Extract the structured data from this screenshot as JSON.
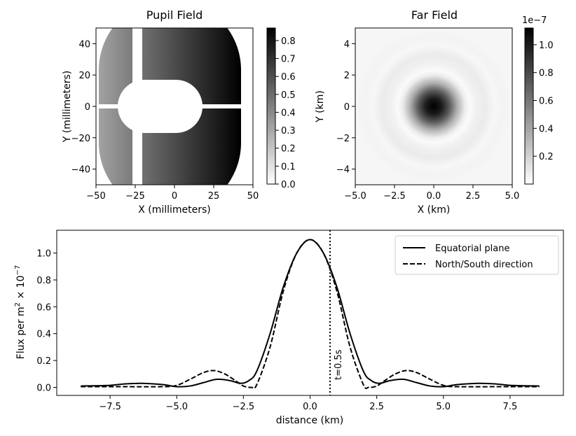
{
  "chart_data": [
    {
      "type": "heatmap",
      "title": "Pupil Field",
      "xlabel": "X (millimeters)",
      "ylabel": "Y (millimeters)",
      "xlim": [
        -50,
        50
      ],
      "ylim": [
        -50,
        50
      ],
      "xticks": [
        -50,
        -25,
        0,
        25,
        50
      ],
      "xtick_labels": [
        "−50",
        "−25",
        "0",
        "25",
        "50"
      ],
      "yticks": [
        -40,
        -20,
        0,
        20,
        40
      ],
      "ytick_labels": [
        "−40",
        "−20",
        "0",
        "20",
        "40"
      ],
      "colorbar": {
        "min": 0,
        "max": 0.87,
        "ticks": [
          0.0,
          0.1,
          0.2,
          0.3,
          0.4,
          0.5,
          0.6,
          0.7,
          0.8
        ],
        "tick_labels": [
          "0.0",
          "0.1",
          "0.2",
          "0.3",
          "0.4",
          "0.5",
          "0.6",
          "0.7",
          "0.8"
        ]
      },
      "aperture": {
        "outer_radius": 45,
        "flat_edges_x": [
          -49,
          42
        ],
        "inner_obstruction": {
          "center_x": 0,
          "center_y": 0,
          "half_width": 17,
          "half_height": 17
        },
        "horizontal_spider": {
          "y": 0,
          "half_thickness": 1.2
        },
        "vertical_spider": {
          "x": -25,
          "half_width": 3
        }
      }
    },
    {
      "type": "heatmap",
      "title": "Far Field",
      "xlabel": "X (km)",
      "ylabel": "Y (km)",
      "xlim": [
        -5,
        5
      ],
      "ylim": [
        -5,
        5
      ],
      "xticks": [
        -5.0,
        -2.5,
        0.0,
        2.5,
        5.0
      ],
      "xtick_labels": [
        "−5.0",
        "−2.5",
        "0.0",
        "2.5",
        "5.0"
      ],
      "yticks": [
        -4,
        -2,
        0,
        2,
        4
      ],
      "ytick_labels": [
        "−4",
        "−2",
        "0",
        "2",
        "4"
      ],
      "colorbar": {
        "min": 0,
        "max": 1.12,
        "ticks": [
          0.2,
          0.4,
          0.6,
          0.8,
          1.0
        ],
        "tick_labels": [
          "0.2",
          "0.4",
          "0.6",
          "0.8",
          "1.0"
        ],
        "offset_text": "1e−7"
      }
    },
    {
      "type": "line",
      "xlabel": "distance (km)",
      "ylabel_main": "Flux per m",
      "ylabel_exp1": "2",
      "ylabel_mid": " × 10",
      "ylabel_exp2": "−7",
      "xlim": [
        -9.5,
        9.5
      ],
      "ylim": [
        -0.06,
        1.17
      ],
      "xticks": [
        -7.5,
        -5.0,
        -2.5,
        0.0,
        2.5,
        5.0,
        7.5
      ],
      "xtick_labels": [
        "−7.5",
        "−5.0",
        "−2.5",
        "0.0",
        "2.5",
        "5.0",
        "7.5"
      ],
      "yticks": [
        0.0,
        0.2,
        0.4,
        0.6,
        0.8,
        1.0
      ],
      "ytick_labels": [
        "0.0",
        "0.2",
        "0.4",
        "0.6",
        "0.8",
        "1.0"
      ],
      "series": [
        {
          "name": "Equatorial plane",
          "style": "solid",
          "x": [
            -8.6,
            -7.5,
            -7.0,
            -6.3,
            -5.5,
            -5.0,
            -4.5,
            -4.0,
            -3.5,
            -3.0,
            -2.6,
            -2.3,
            -2.0,
            -1.5,
            -1.0,
            -0.5,
            0.0,
            0.5,
            1.0,
            1.5,
            2.0,
            2.3,
            2.6,
            3.0,
            3.5,
            4.0,
            4.5,
            5.0,
            5.5,
            6.3,
            7.0,
            7.5,
            8.6
          ],
          "values": [
            0.01,
            0.015,
            0.025,
            0.03,
            0.02,
            0.005,
            0.01,
            0.035,
            0.06,
            0.05,
            0.03,
            0.05,
            0.12,
            0.4,
            0.75,
            1.0,
            1.1,
            1.0,
            0.75,
            0.4,
            0.12,
            0.05,
            0.03,
            0.05,
            0.06,
            0.035,
            0.01,
            0.005,
            0.02,
            0.03,
            0.025,
            0.015,
            0.01
          ]
        },
        {
          "name": "North/South direction",
          "style": "dashed",
          "x": [
            -8.6,
            -7.0,
            -5.5,
            -5.0,
            -4.5,
            -4.0,
            -3.6,
            -3.2,
            -2.8,
            -2.5,
            -2.2,
            -2.0,
            -1.5,
            -1.0,
            -0.5,
            0.0,
            0.5,
            1.0,
            1.5,
            2.0,
            2.2,
            2.5,
            2.8,
            3.2,
            3.6,
            4.0,
            4.5,
            5.0,
            5.5,
            7.0,
            8.6
          ],
          "values": [
            0.005,
            0.005,
            0.005,
            0.015,
            0.06,
            0.11,
            0.125,
            0.1,
            0.05,
            0.01,
            0.0,
            0.02,
            0.3,
            0.72,
            1.0,
            1.1,
            1.0,
            0.72,
            0.3,
            0.02,
            0.0,
            0.01,
            0.05,
            0.1,
            0.125,
            0.11,
            0.06,
            0.015,
            0.005,
            0.005,
            0.005
          ]
        }
      ],
      "vline": {
        "x": 0.75,
        "label": "t=0.5s"
      },
      "legend_position": "top-right"
    }
  ]
}
